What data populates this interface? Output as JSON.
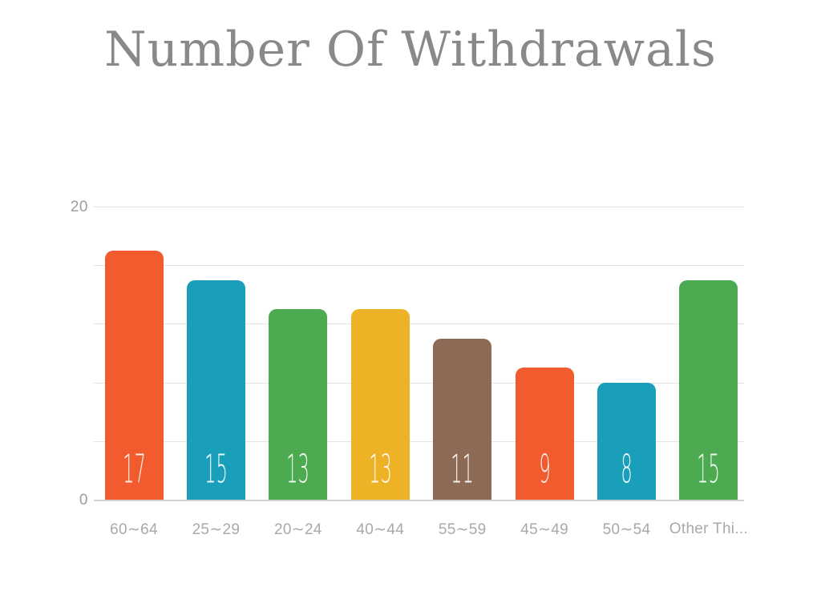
{
  "chart_data": {
    "type": "bar",
    "title": "Number Of Withdrawals",
    "xlabel": "",
    "ylabel": "",
    "categories": [
      "60∼64",
      "25∼29",
      "20∼24",
      "40∼44",
      "55∼59",
      "45∼49",
      "50∼54",
      "Other Thi..."
    ],
    "values": [
      17,
      15,
      13,
      13,
      11,
      9,
      8,
      15
    ],
    "value_labels": [
      "17",
      "15",
      "13",
      "13",
      "11",
      "9",
      "8",
      "15"
    ],
    "bar_colors": [
      "#f15b2e",
      "#1a9fba",
      "#4caa50",
      "#eeb226",
      "#8d6a56",
      "#f15b2e",
      "#1a9fba",
      "#4caa50"
    ],
    "ylim": [
      0,
      20
    ],
    "gridlines": [
      20,
      16,
      12,
      8,
      4,
      0
    ],
    "grid": true,
    "legend": false,
    "ytick_labels": [
      {
        "value": 20,
        "label": "20"
      },
      {
        "value": 0,
        "label": "0"
      }
    ]
  },
  "style": {
    "background": "#ffffff",
    "title_color": "#87898b",
    "gridline_color": "#e4e4e5",
    "baseline_color": "#d2d2d3",
    "ytick_color": "#9b9da0",
    "xlabel_color": "#a7a9ab",
    "value_label_color": "#ffffff"
  }
}
